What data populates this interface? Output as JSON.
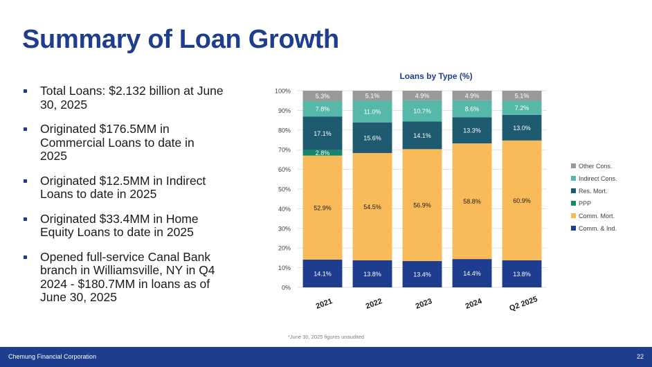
{
  "slide": {
    "title": "Summary of Loan Growth",
    "bullets": [
      "Total Loans: $2.132 billion at June 30, 2025",
      "Originated $176.5MM in Commercial Loans to date in 2025",
      "Originated $12.5MM in Indirect Loans to date in 2025",
      "Originated $33.4MM in Home Equity Loans to date in 2025",
      "Opened full-service Canal Bank branch in Williamsville, NY in Q4 2024 -  $180.7MM in loans as of June 30, 2025"
    ],
    "footnote": "*June 30, 2025 figures unaudited",
    "footer_company": "Chemung Financial Corporation",
    "page_number": "22"
  },
  "chart_data": {
    "type": "bar",
    "stacked": true,
    "title": "Loans by Type (%)",
    "categories": [
      "2021",
      "2022",
      "2023",
      "2024",
      "Q2 2025"
    ],
    "ylim": [
      0,
      100
    ],
    "yticks": [
      "0%",
      "10%",
      "20%",
      "30%",
      "40%",
      "50%",
      "60%",
      "70%",
      "80%",
      "90%",
      "100%"
    ],
    "grid": true,
    "legend_position": "right",
    "series": [
      {
        "name": "Comm. & Ind.",
        "color": "#1f3d8f",
        "values": [
          14.1,
          13.8,
          13.4,
          14.4,
          13.8
        ],
        "labels": [
          "14.1%",
          "13.8%",
          "13.4%",
          "14.4%",
          "13.8%"
        ]
      },
      {
        "name": "Comm. Mort.",
        "color": "#f9bb5a",
        "values": [
          52.9,
          54.5,
          56.9,
          58.8,
          60.9
        ],
        "labels": [
          "52.9%",
          "54.5%",
          "56.9%",
          "58.8%",
          "60.9%"
        ]
      },
      {
        "name": "PPP",
        "color": "#12876a",
        "values": [
          2.8,
          0,
          0,
          0,
          0
        ],
        "labels": [
          "2.8%",
          "",
          "",
          "",
          ""
        ]
      },
      {
        "name": "Res. Mort.",
        "color": "#1e5a70",
        "values": [
          17.1,
          15.6,
          14.1,
          13.3,
          13.0
        ],
        "labels": [
          "17.1%",
          "15.6%",
          "14.1%",
          "13.3%",
          "13.0%"
        ]
      },
      {
        "name": "Indirect Cons.",
        "color": "#55b8a8",
        "values": [
          7.8,
          11.0,
          10.7,
          8.6,
          7.2
        ],
        "labels": [
          "7.8%",
          "11.0%",
          "10.7%",
          "8.6%",
          "7.2%"
        ]
      },
      {
        "name": "Other Cons.",
        "color": "#9a9a9a",
        "values": [
          5.3,
          5.1,
          4.9,
          4.9,
          5.1
        ],
        "labels": [
          "5.3%",
          "5.1%",
          "4.9%",
          "4.9%",
          "5.1%"
        ]
      }
    ],
    "legend_order": [
      "Other Cons.",
      "Indirect Cons.",
      "Res. Mort.",
      "PPP",
      "Comm. Mort.",
      "Comm. & Ind."
    ]
  }
}
